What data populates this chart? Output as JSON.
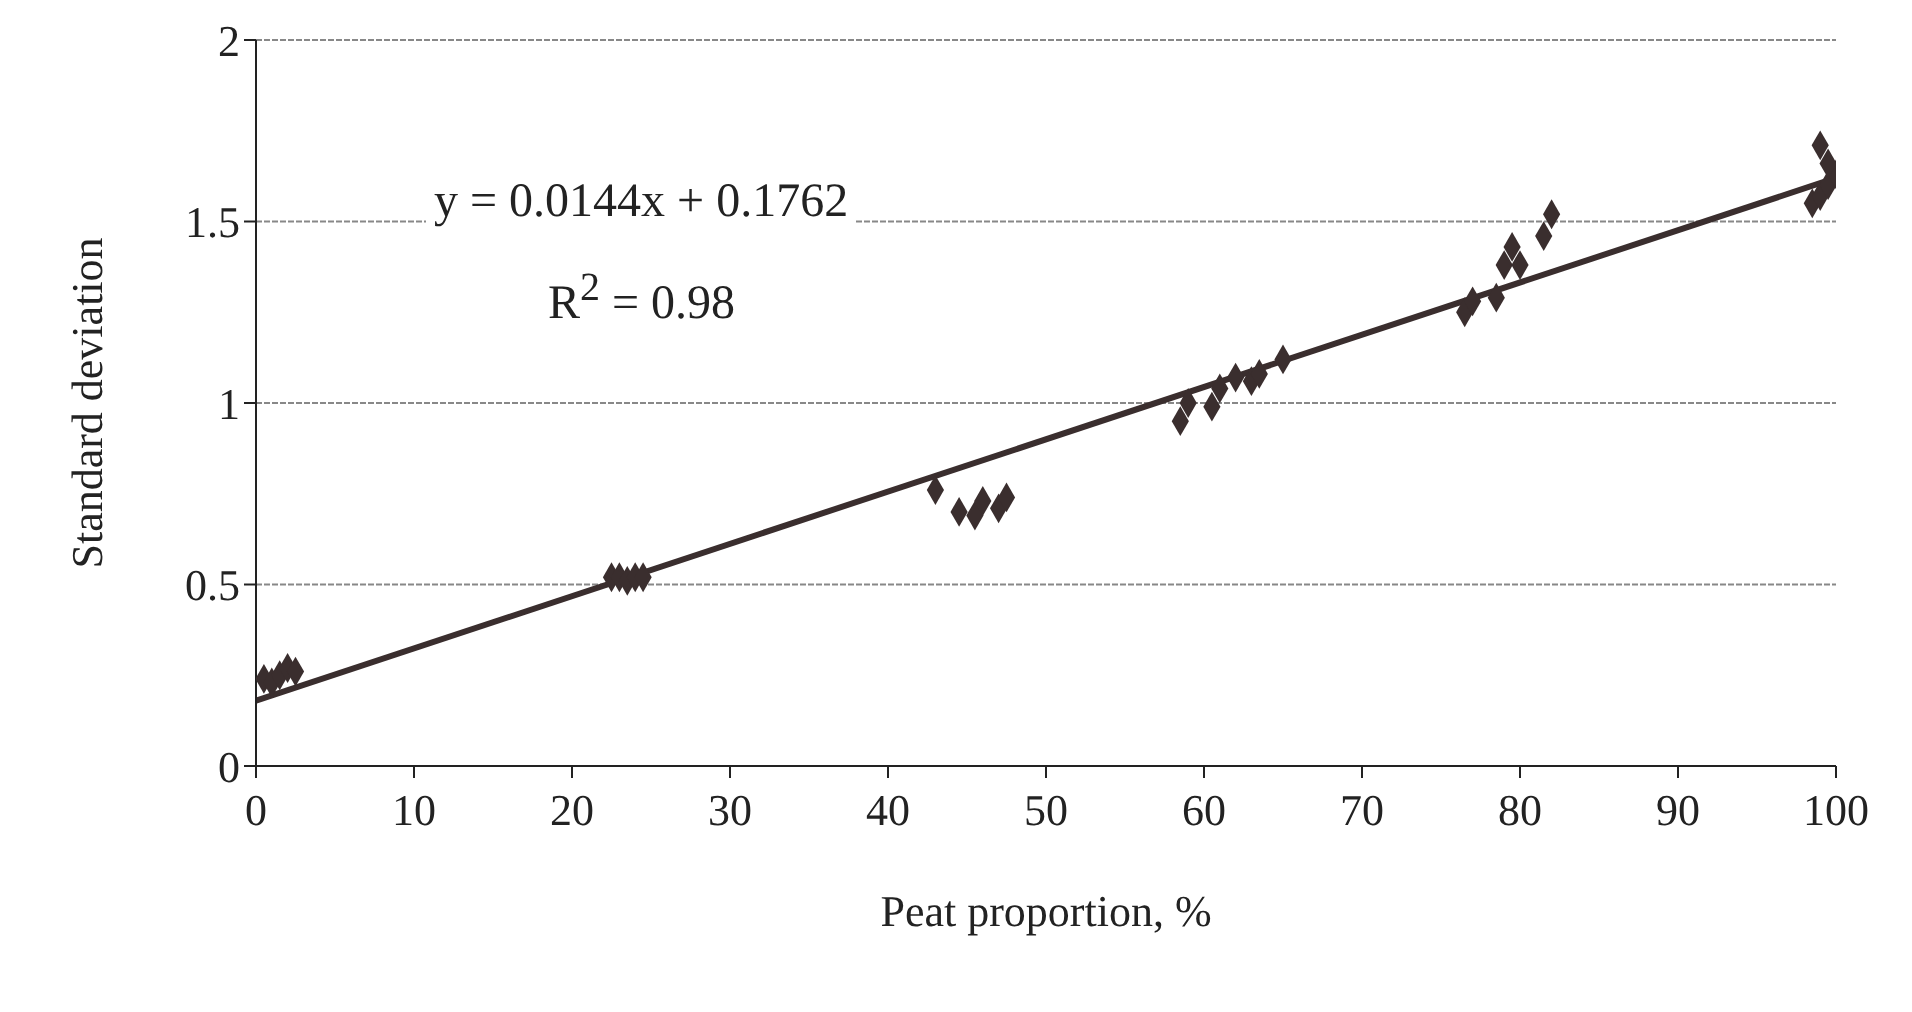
{
  "chart_data": {
    "type": "scatter",
    "xlabel": "Peat proportion, %",
    "ylabel": "Standard deviation",
    "xlim": [
      0,
      100
    ],
    "xticks": [
      0,
      10,
      20,
      30,
      40,
      50,
      60,
      70,
      80,
      90,
      100
    ],
    "ylim": [
      0,
      2
    ],
    "yticks": [
      0,
      0.5,
      1,
      1.5,
      2
    ],
    "grid": "y",
    "annotations": [
      "y = 0.0144x + 0.1762",
      "R$^{2}$ = 0.98"
    ],
    "series": [
      {
        "marker": "diamond",
        "color": "#3a2e2e",
        "x": [
          0.5,
          1,
          1.5,
          2,
          2.5,
          22.5,
          23,
          23.5,
          24,
          24.5,
          43,
          44.5,
          45.5,
          46,
          47,
          47.5,
          58.5,
          59,
          60.5,
          61,
          62,
          63,
          63.5,
          65,
          76.5,
          77,
          78.5,
          79,
          79.5,
          80,
          81.5,
          82,
          98.5,
          99,
          99.5,
          100,
          99.5,
          99
        ],
        "values": [
          0.24,
          0.23,
          0.25,
          0.27,
          0.26,
          0.52,
          0.52,
          0.51,
          0.52,
          0.52,
          0.76,
          0.7,
          0.69,
          0.73,
          0.71,
          0.74,
          0.95,
          1.0,
          0.99,
          1.04,
          1.07,
          1.06,
          1.08,
          1.12,
          1.25,
          1.28,
          1.29,
          1.38,
          1.43,
          1.38,
          1.46,
          1.52,
          1.55,
          1.57,
          1.6,
          1.63,
          1.66,
          1.71
        ]
      },
      {
        "type": "line",
        "color": "#3a2e2e",
        "x": [
          0,
          100
        ],
        "values": [
          0.18,
          1.62
        ]
      }
    ]
  }
}
